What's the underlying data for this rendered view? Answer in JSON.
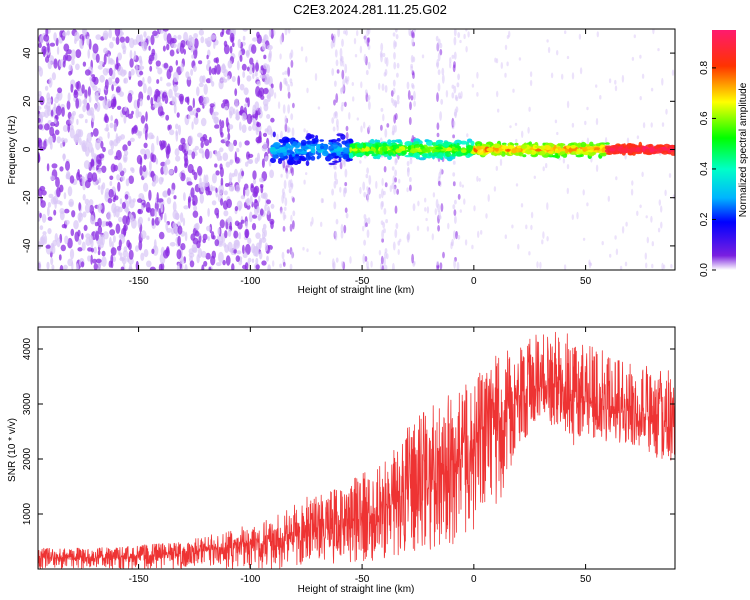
{
  "title": "C2E3.2024.281.11.25.G02",
  "chart_data": [
    {
      "type": "heatmap",
      "title": "C2E3.2024.281.11.25.G02",
      "xlabel": "Height of straight line (km)",
      "ylabel": "Frequency (Hz)",
      "xlim": [
        -195,
        90
      ],
      "ylim": [
        -50,
        50
      ],
      "x_ticks": [
        -150,
        -100,
        -50,
        0,
        50
      ],
      "y_ticks": [
        -40,
        -20,
        0,
        20,
        40
      ],
      "colorbar": {
        "label": "Normalized spectral amplitude",
        "range": [
          0,
          0.95
        ],
        "ticks": [
          0.0,
          0.2,
          0.4,
          0.6,
          0.8
        ],
        "colormap": "rainbow"
      },
      "regions": [
        {
          "x_range": [
            -195,
            -90
          ],
          "freq_range": [
            -50,
            50
          ],
          "amplitude_range": [
            0.02,
            0.08
          ],
          "description": "noise"
        },
        {
          "x_range": [
            -90,
            -55
          ],
          "freq_range": [
            -7,
            7
          ],
          "amplitude_range": [
            0.1,
            0.35
          ]
        },
        {
          "x_range": [
            -55,
            0
          ],
          "freq_range": [
            -4,
            4
          ],
          "amplitude_range": [
            0.3,
            0.7
          ]
        },
        {
          "x_range": [
            0,
            60
          ],
          "freq_range": [
            -3,
            3
          ],
          "amplitude_range": [
            0.5,
            0.8
          ]
        },
        {
          "x_range": [
            60,
            90
          ],
          "freq_range": [
            -2,
            2
          ],
          "amplitude_range": [
            0.8,
            0.95
          ]
        }
      ],
      "colors": {
        "noise": "#8a2be2",
        "noise_light": "#d9c6f7"
      }
    },
    {
      "type": "line",
      "xlabel": "Height of straight line (km)",
      "ylabel": "SNR (10 * v/v)",
      "xlim": [
        -195,
        90
      ],
      "ylim": [
        0,
        4400
      ],
      "x_ticks": [
        -150,
        -100,
        -50,
        0,
        50
      ],
      "y_ticks": [
        1000,
        2000,
        3000,
        4000
      ],
      "series": [
        {
          "color": "#ee3333",
          "envelope": {
            "x": [
              -195,
              -160,
              -130,
              -110,
              -90,
              -75,
              -60,
              -45,
              -35,
              -25,
              -15,
              -5,
              0,
              10,
              20,
              30,
              35,
              40,
              45,
              50,
              60,
              70,
              80,
              90
            ],
            "lower": [
              0,
              0,
              0,
              0,
              0,
              50,
              100,
              150,
              200,
              300,
              400,
              500,
              600,
              1000,
              2200,
              2800,
              2600,
              2500,
              2200,
              2400,
              2300,
              2200,
              2000,
              1800
            ],
            "upper": [
              380,
              400,
              500,
              700,
              950,
              1300,
              1500,
              1900,
              2300,
              2800,
              3100,
              3300,
              3500,
              3900,
              4100,
              4300,
              4400,
              4350,
              4250,
              4100,
              3950,
              3850,
              3700,
              3600
            ],
            "mean": [
              200,
              210,
              280,
              380,
              500,
              700,
              850,
              1000,
              1200,
              1500,
              1800,
              2000,
              2200,
              2600,
              3100,
              3300,
              3400,
              3200,
              3000,
              3050,
              2950,
              2850,
              2700,
              2600
            ]
          }
        }
      ]
    }
  ]
}
